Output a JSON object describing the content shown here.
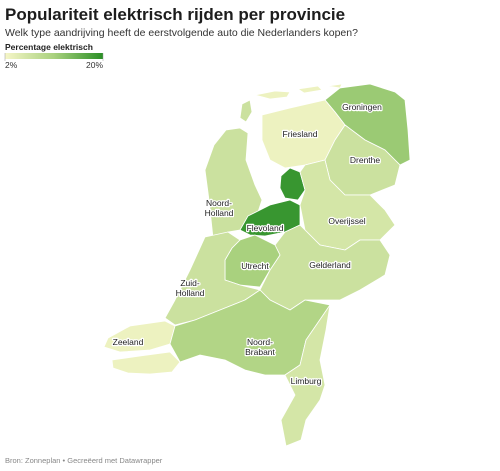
{
  "header": {
    "title": "Populariteit elektrisch rijden per provincie",
    "subtitle": "Welk type aandrijving heeft de eerstvolgende auto die Nederlanders kopen?"
  },
  "chart_data": {
    "type": "choropleth",
    "legend_title": "Percentage elektrisch",
    "lim": [
      2,
      20
    ],
    "ticks": [
      {
        "value": 2,
        "label": "2%"
      },
      {
        "value": 20,
        "label": "20%"
      }
    ],
    "colors": [
      "#f6f6c8",
      "#a9d17e",
      "#2a8f26"
    ],
    "regions": [
      {
        "name": "Groningen",
        "value": 12
      },
      {
        "name": "Friesland",
        "value": 3
      },
      {
        "name": "Drenthe",
        "value": 7
      },
      {
        "name": "Noord-Holland",
        "value": 7
      },
      {
        "name": "Flevoland",
        "value": 19
      },
      {
        "name": "Overijssel",
        "value": 6
      },
      {
        "name": "Gelderland",
        "value": 7
      },
      {
        "name": "Utrecht",
        "value": 11
      },
      {
        "name": "Zuid-Holland",
        "value": 7
      },
      {
        "name": "Zeeland",
        "value": 3
      },
      {
        "name": "Noord-Brabant",
        "value": 10
      },
      {
        "name": "Limburg",
        "value": 6
      }
    ]
  },
  "footer": {
    "source": "Bron: Zonneplan • Gecreëerd met Datawrapper"
  }
}
